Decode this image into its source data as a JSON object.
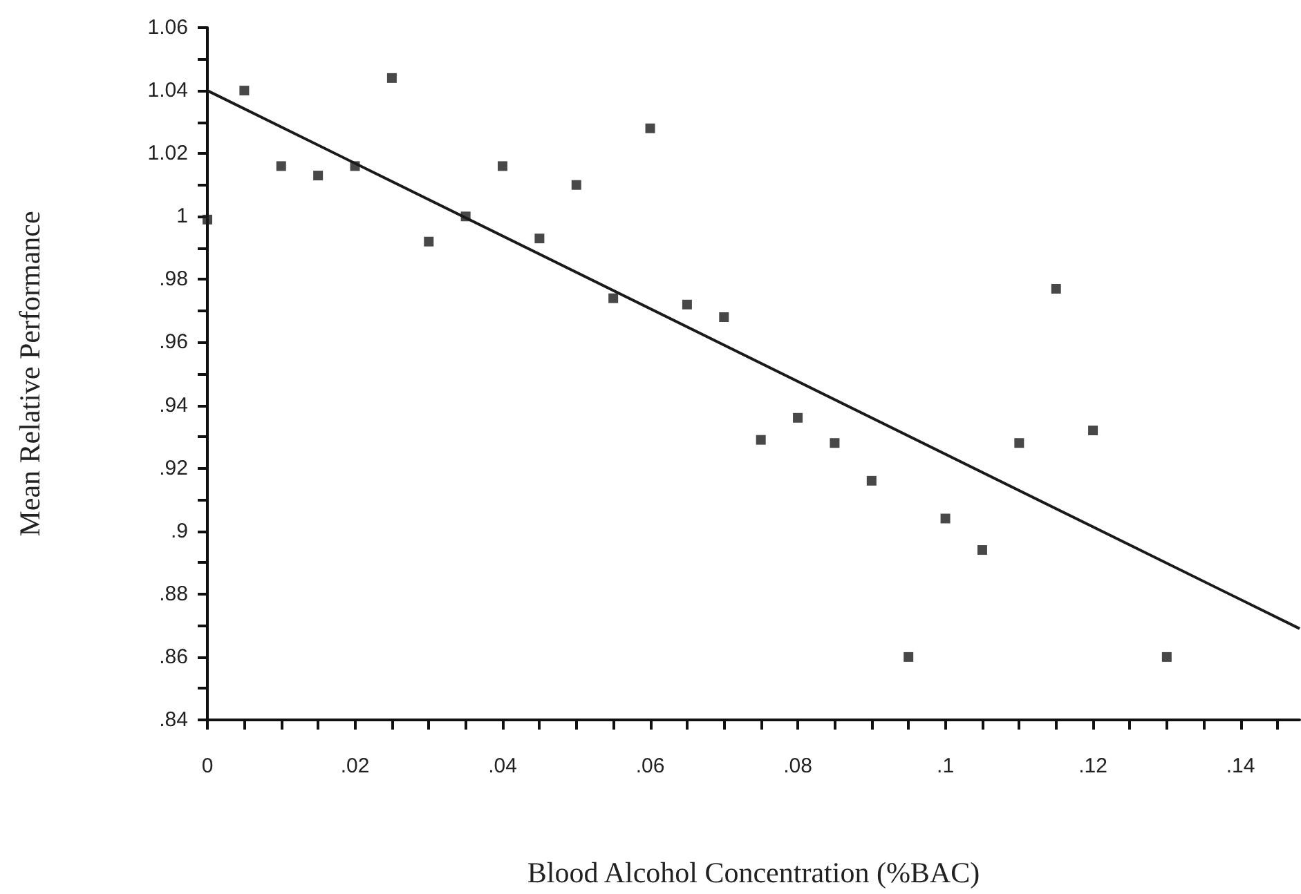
{
  "chart_data": {
    "type": "scatter",
    "xlabel": "Blood Alcohol Concentration (%BAC)",
    "ylabel": "Mean Relative Performance",
    "xlim": [
      0,
      0.148
    ],
    "ylim": [
      0.84,
      1.06
    ],
    "xticks": [
      {
        "value": 0,
        "label": "0"
      },
      {
        "value": 0.005,
        "label": null
      },
      {
        "value": 0.01,
        "label": null
      },
      {
        "value": 0.015,
        "label": null
      },
      {
        "value": 0.02,
        "label": ".02"
      },
      {
        "value": 0.025,
        "label": null
      },
      {
        "value": 0.03,
        "label": null
      },
      {
        "value": 0.035,
        "label": null
      },
      {
        "value": 0.04,
        "label": ".04"
      },
      {
        "value": 0.045,
        "label": null
      },
      {
        "value": 0.05,
        "label": null
      },
      {
        "value": 0.055,
        "label": null
      },
      {
        "value": 0.06,
        "label": ".06"
      },
      {
        "value": 0.065,
        "label": null
      },
      {
        "value": 0.07,
        "label": null
      },
      {
        "value": 0.075,
        "label": null
      },
      {
        "value": 0.08,
        "label": ".08"
      },
      {
        "value": 0.085,
        "label": null
      },
      {
        "value": 0.09,
        "label": null
      },
      {
        "value": 0.095,
        "label": null
      },
      {
        "value": 0.1,
        "label": ".1"
      },
      {
        "value": 0.105,
        "label": null
      },
      {
        "value": 0.11,
        "label": null
      },
      {
        "value": 0.115,
        "label": null
      },
      {
        "value": 0.12,
        "label": ".12"
      },
      {
        "value": 0.125,
        "label": null
      },
      {
        "value": 0.13,
        "label": null
      },
      {
        "value": 0.135,
        "label": null
      },
      {
        "value": 0.14,
        "label": ".14"
      },
      {
        "value": 0.145,
        "label": null
      }
    ],
    "yticks": [
      {
        "value": 0.84,
        "label": ".84"
      },
      {
        "value": 0.85,
        "label": null
      },
      {
        "value": 0.86,
        "label": ".86"
      },
      {
        "value": 0.87,
        "label": null
      },
      {
        "value": 0.88,
        "label": ".88"
      },
      {
        "value": 0.89,
        "label": null
      },
      {
        "value": 0.9,
        "label": ".9"
      },
      {
        "value": 0.91,
        "label": null
      },
      {
        "value": 0.92,
        "label": ".92"
      },
      {
        "value": 0.93,
        "label": null
      },
      {
        "value": 0.94,
        "label": ".94"
      },
      {
        "value": 0.95,
        "label": null
      },
      {
        "value": 0.96,
        "label": ".96"
      },
      {
        "value": 0.97,
        "label": null
      },
      {
        "value": 0.98,
        "label": ".98"
      },
      {
        "value": 0.99,
        "label": null
      },
      {
        "value": 1,
        "label": "1"
      },
      {
        "value": 1.01,
        "label": null
      },
      {
        "value": 1.02,
        "label": "1.02"
      },
      {
        "value": 1.03,
        "label": null
      },
      {
        "value": 1.04,
        "label": "1.04"
      },
      {
        "value": 1.05,
        "label": null
      },
      {
        "value": 1.06,
        "label": "1.06"
      }
    ],
    "series": [
      {
        "color": "#1a1a1a",
        "marker": "square",
        "x": [
          0,
          0.005,
          0.01,
          0.015,
          0.02,
          0.025,
          0.03,
          0.035,
          0.04,
          0.045,
          0.05,
          0.055,
          0.06,
          0.065,
          0.07,
          0.075,
          0.08,
          0.085,
          0.09,
          0.095,
          0.1,
          0.105,
          0.11,
          0.115,
          0.12,
          0.13
        ],
        "values": [
          0.999,
          1.04,
          1.016,
          1.013,
          1.016,
          1.044,
          0.992,
          1.0,
          1.016,
          0.993,
          1.01,
          0.974,
          1.028,
          0.972,
          0.968,
          0.929,
          0.936,
          0.928,
          0.916,
          0.86,
          0.904,
          0.894,
          0.928,
          0.977,
          0.932,
          0.86
        ]
      },
      {
        "type": "line",
        "color": "#1a1a1a",
        "marker": "none",
        "x": [
          0,
          0.148
        ],
        "values": [
          1.04,
          0.869
        ]
      }
    ]
  }
}
